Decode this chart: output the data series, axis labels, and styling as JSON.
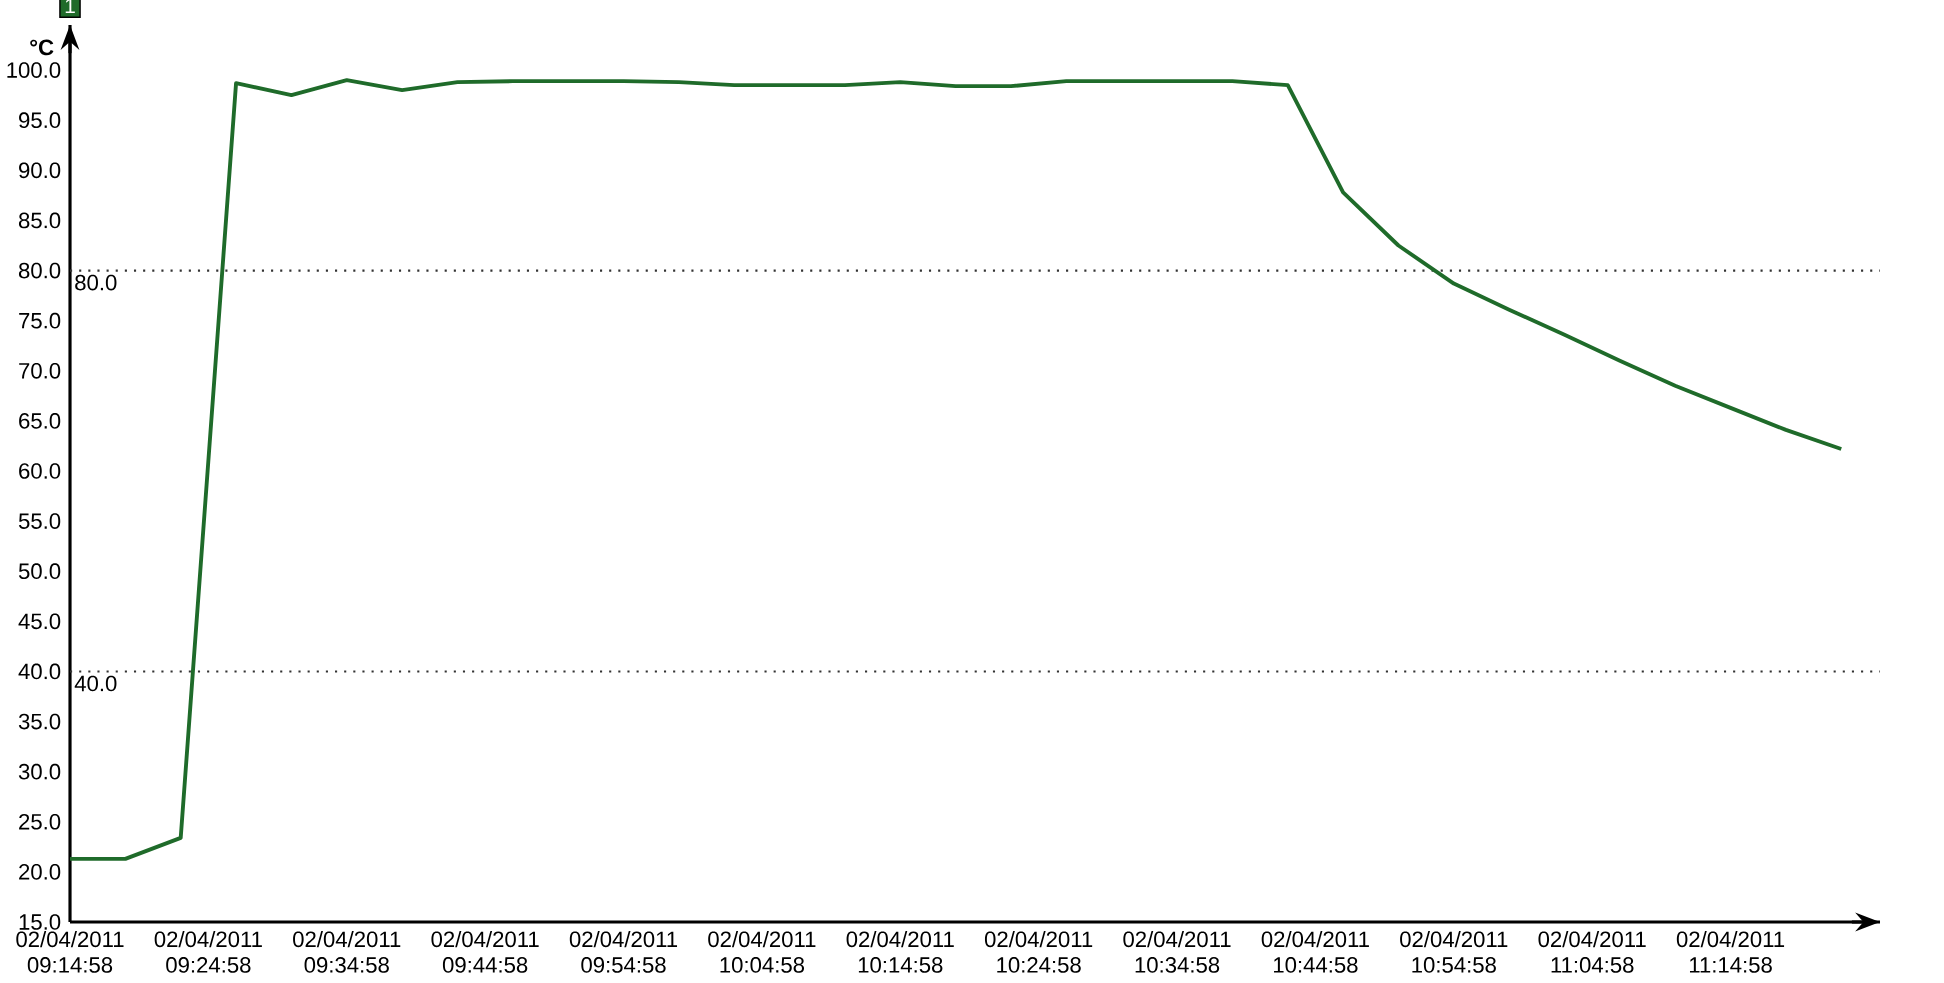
{
  "chart_data": {
    "type": "line",
    "ylabel": "°C",
    "x": [
      "2011-04-02T09:14:58",
      "2011-04-02T09:18:58",
      "2011-04-02T09:22:58",
      "2011-04-02T09:26:58",
      "2011-04-02T09:30:58",
      "2011-04-02T09:34:58",
      "2011-04-02T09:38:58",
      "2011-04-02T09:42:58",
      "2011-04-02T09:46:58",
      "2011-04-02T09:50:58",
      "2011-04-02T09:54:58",
      "2011-04-02T09:58:58",
      "2011-04-02T10:02:58",
      "2011-04-02T10:06:58",
      "2011-04-02T10:10:58",
      "2011-04-02T10:14:58",
      "2011-04-02T10:18:58",
      "2011-04-02T10:22:58",
      "2011-04-02T10:26:58",
      "2011-04-02T10:30:58",
      "2011-04-02T10:34:58",
      "2011-04-02T10:38:58",
      "2011-04-02T10:42:58",
      "2011-04-02T10:46:58",
      "2011-04-02T10:50:58",
      "2011-04-02T10:54:58",
      "2011-04-02T10:58:58",
      "2011-04-02T11:02:58",
      "2011-04-02T11:06:58",
      "2011-04-02T11:10:58",
      "2011-04-02T11:14:58",
      "2011-04-02T11:18:58",
      "2011-04-02T11:22:58"
    ],
    "series": [
      {
        "name": "1",
        "color": "#1f6b2a",
        "values": [
          21.3,
          21.3,
          23.4,
          98.7,
          97.5,
          99.0,
          98.0,
          98.8,
          98.9,
          98.9,
          98.9,
          98.8,
          98.5,
          98.5,
          98.5,
          98.8,
          98.4,
          98.4,
          98.9,
          98.9,
          98.9,
          98.9,
          98.5,
          87.8,
          82.5,
          78.7,
          76.1,
          73.6,
          71.0,
          68.5,
          66.3,
          64.1,
          62.2
        ]
      }
    ],
    "xlim": [
      "2011-04-02T09:14:58",
      "2011-04-02T11:25:46"
    ],
    "ylim": [
      15,
      104.5
    ],
    "xticks": [
      {
        "value": "2011-04-02T09:14:58",
        "label": "02/04/2011 09:14:58"
      },
      {
        "value": "2011-04-02T09:24:58",
        "label": "02/04/2011 09:24:58"
      },
      {
        "value": "2011-04-02T09:34:58",
        "label": "02/04/2011 09:34:58"
      },
      {
        "value": "2011-04-02T09:44:58",
        "label": "02/04/2011 09:44:58"
      },
      {
        "value": "2011-04-02T09:54:58",
        "label": "02/04/2011 09:54:58"
      },
      {
        "value": "2011-04-02T10:04:58",
        "label": "02/04/2011 10:04:58"
      },
      {
        "value": "2011-04-02T10:14:58",
        "label": "02/04/2011 10:14:58"
      },
      {
        "value": "2011-04-02T10:24:58",
        "label": "02/04/2011 10:24:58"
      },
      {
        "value": "2011-04-02T10:34:58",
        "label": "02/04/2011 10:34:58"
      },
      {
        "value": "2011-04-02T10:44:58",
        "label": "02/04/2011 10:44:58"
      },
      {
        "value": "2011-04-02T10:54:58",
        "label": "02/04/2011 10:54:58"
      },
      {
        "value": "2011-04-02T11:04:58",
        "label": "02/04/2011 11:04:58"
      },
      {
        "value": "2011-04-02T11:14:58",
        "label": "02/04/2011 11:14:58"
      }
    ],
    "yticks": [
      {
        "value": 15,
        "label": "15.0"
      },
      {
        "value": 20,
        "label": "20.0"
      },
      {
        "value": 25,
        "label": "25.0"
      },
      {
        "value": 30,
        "label": "30.0"
      },
      {
        "value": 35,
        "label": "35.0"
      },
      {
        "value": 40,
        "label": "40.0"
      },
      {
        "value": 45,
        "label": "45.0"
      },
      {
        "value": 50,
        "label": "50.0"
      },
      {
        "value": 55,
        "label": "55.0"
      },
      {
        "value": 60,
        "label": "60.0"
      },
      {
        "value": 65,
        "label": "65.0"
      },
      {
        "value": 70,
        "label": "70.0"
      },
      {
        "value": 75,
        "label": "75.0"
      },
      {
        "value": 80,
        "label": "80.0"
      },
      {
        "value": 85,
        "label": "85.0"
      },
      {
        "value": 90,
        "label": "90.0"
      },
      {
        "value": 95,
        "label": "95.0"
      },
      {
        "value": 100,
        "label": "100.0"
      }
    ],
    "ref_lines": [
      {
        "axis": "y",
        "value": 80,
        "label": "80.0",
        "color": "#333333",
        "line_style": "dotted"
      },
      {
        "axis": "y",
        "value": 40,
        "label": "40.0",
        "color": "#333333",
        "line_style": "dotted"
      }
    ],
    "legend": "top left",
    "marker": "none",
    "line_style": "solid",
    "grid": false
  }
}
